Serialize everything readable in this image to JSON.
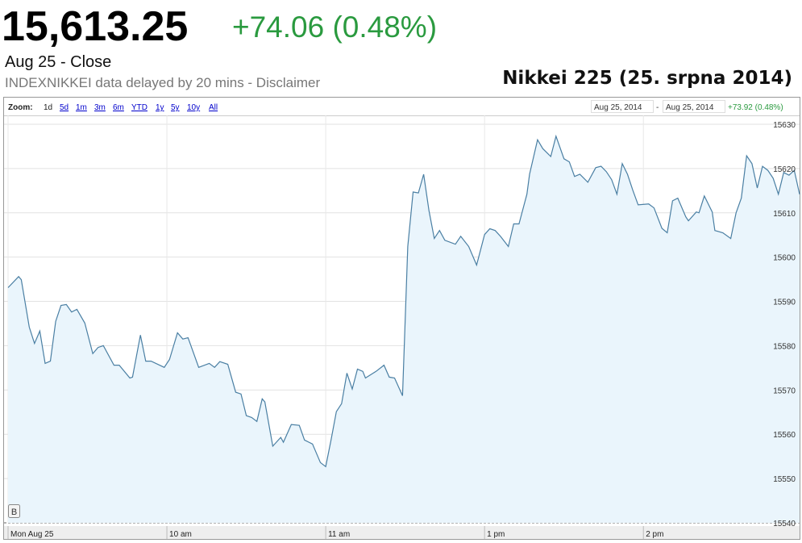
{
  "header": {
    "price": "15,613.25",
    "change": "+74.06 (0.48%)",
    "date": "Aug 25 - Close",
    "note": "INDEXNIKKEI data delayed by 20 mins - Disclaimer"
  },
  "toolbar": {
    "zoom_label": "Zoom:",
    "zoom_options": [
      "1d",
      "5d",
      "1m",
      "3m",
      "6m",
      "YTD",
      "1y",
      "5y",
      "10y",
      "All"
    ],
    "range_start": "Aug 25, 2014",
    "range_sep": "-",
    "range_end": "Aug 25, 2014",
    "range_change": "+73.92 (0.48%)"
  },
  "marker": "B",
  "chart_data": {
    "type": "line",
    "title": "Nikkei 225 (25. srpna 2014)",
    "x": [
      0,
      4,
      5,
      8,
      10,
      12,
      14,
      16,
      18,
      20,
      22,
      24,
      26,
      29,
      32,
      34,
      36,
      40,
      42,
      46,
      47,
      50,
      52,
      54,
      59,
      61,
      64,
      66,
      68,
      72,
      76,
      78,
      80,
      83,
      86,
      88,
      90,
      92,
      94,
      96,
      97,
      100,
      103,
      104,
      107,
      110,
      112,
      115,
      118,
      120,
      122,
      124,
      126,
      128,
      130,
      132,
      134,
      135,
      139,
      142,
      144,
      146,
      149,
      151,
      153,
      155,
      157,
      159,
      161,
      163,
      165,
      169,
      171,
      174,
      177,
      180,
      182,
      184,
      186,
      189,
      191,
      193,
      196,
      197,
      200,
      202,
      205,
      207,
      210,
      212,
      214,
      216,
      219,
      222,
      224,
      226,
      228,
      230,
      232,
      234,
      236,
      238,
      242,
      244,
      247,
      249,
      251,
      253,
      256,
      257,
      260,
      261,
      263,
      266,
      267,
      270,
      273,
      275,
      277,
      279,
      281,
      283,
      285,
      287,
      289,
      291,
      293,
      295,
      297,
      299
    ],
    "values": [
      15593.1,
      15595.6,
      15594.9,
      15584.2,
      15580.5,
      15583.3,
      15576.0,
      15576.5,
      15585.5,
      15589.1,
      15589.3,
      15587.6,
      15588.2,
      15585.1,
      15578.2,
      15579.6,
      15580.0,
      15575.6,
      15575.6,
      15572.7,
      15572.9,
      15582.4,
      15576.5,
      15576.5,
      15575.1,
      15576.9,
      15582.9,
      15581.5,
      15581.8,
      15575.1,
      15576.0,
      15575.1,
      15576.4,
      15575.8,
      15569.5,
      15569.1,
      15564.2,
      15563.8,
      15562.9,
      15568.0,
      15567.3,
      15557.3,
      15559.3,
      15558.2,
      15562.2,
      15562.0,
      15558.7,
      15557.8,
      15553.6,
      15552.7,
      15558.7,
      15565.1,
      15566.9,
      15573.8,
      15570.2,
      15574.7,
      15574.2,
      15572.7,
      15574.2,
      15575.6,
      15572.9,
      15572.7,
      15568.7,
      15602.4,
      15614.7,
      15614.5,
      15618.7,
      15610.5,
      15604.2,
      15606.0,
      15603.8,
      15602.9,
      15604.7,
      15602.4,
      15598.2,
      15605.1,
      15606.4,
      15606.0,
      15604.7,
      15602.4,
      15607.5,
      15607.5,
      15614.2,
      15618.7,
      15626.5,
      15624.5,
      15622.7,
      15627.3,
      15622.2,
      15621.5,
      15618.2,
      15618.7,
      15616.9,
      15620.2,
      15620.5,
      15619.3,
      15617.5,
      15614.2,
      15621.1,
      15618.7,
      15615.1,
      15611.8,
      15612.0,
      15611.1,
      15606.5,
      15605.5,
      15612.7,
      15613.3,
      15609.1,
      15608.2,
      15610.2,
      15610.0,
      15613.8,
      15610.2,
      15606.0,
      15605.5,
      15604.2,
      15610.0,
      15613.3,
      15622.9,
      15621.1,
      15615.6,
      15620.5,
      15619.6,
      15617.8,
      15614.2,
      15619.1,
      15618.5,
      15619.6,
      15614.2
    ],
    "color": "#4a7fa3",
    "fill": "#eaf5fc",
    "xlim": [
      0,
      299
    ],
    "xticks": [
      {
        "value": 0,
        "label": "Mon Aug 25"
      },
      {
        "value": 60,
        "label": "10 am"
      },
      {
        "value": 120,
        "label": "11 am"
      },
      {
        "value": 180,
        "label": "1 pm"
      },
      {
        "value": 240,
        "label": "2 pm"
      }
    ],
    "ylim": [
      15540,
      15632
    ],
    "yticks": [
      15540,
      15550,
      15560,
      15570,
      15580,
      15590,
      15600,
      15610,
      15620,
      15630
    ],
    "grid": true
  }
}
